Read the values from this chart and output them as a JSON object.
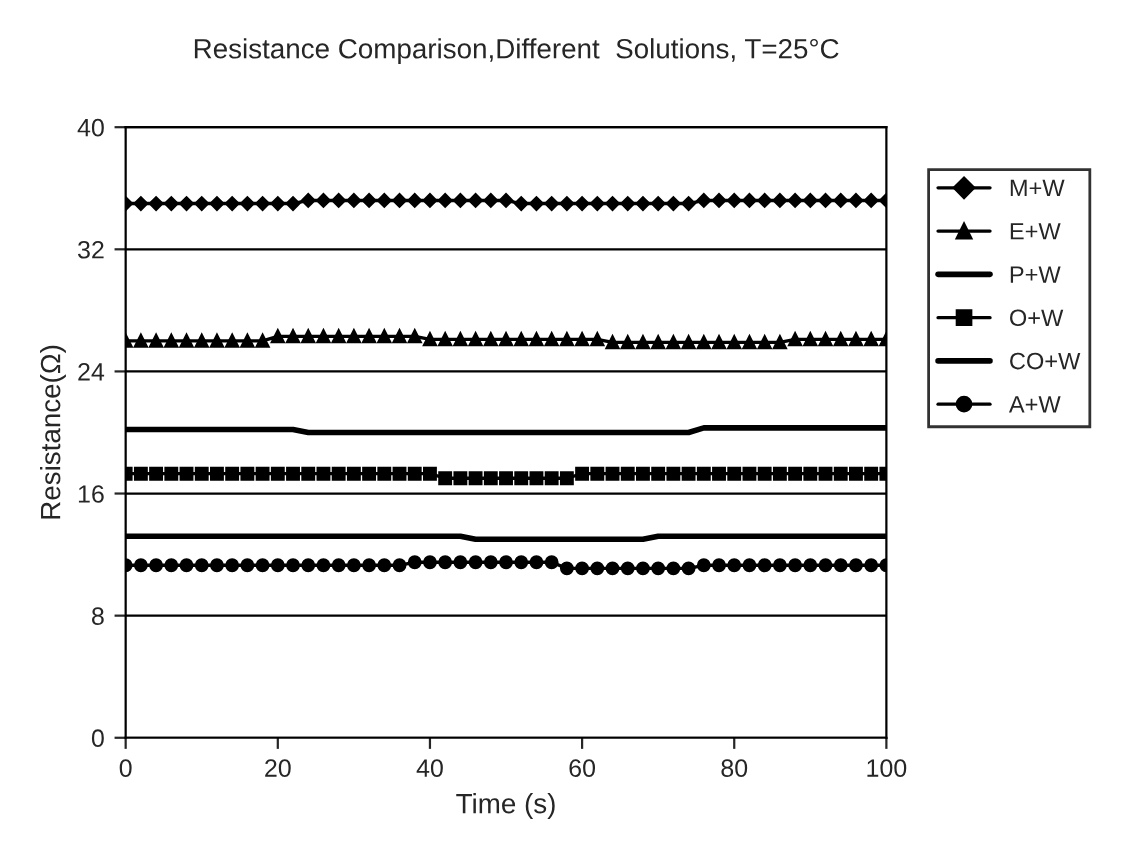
{
  "chart_data": {
    "type": "line",
    "title": "Resistance Comparison,Different  Solutions, T=25°C",
    "xlabel": "Time (s)",
    "ylabel": "Resistance(Ω)",
    "x": [
      0,
      2,
      4,
      6,
      8,
      10,
      12,
      14,
      16,
      18,
      20,
      22,
      24,
      26,
      28,
      30,
      32,
      34,
      36,
      38,
      40,
      42,
      44,
      46,
      48,
      50,
      52,
      54,
      56,
      58,
      60,
      62,
      64,
      66,
      68,
      70,
      72,
      74,
      76,
      78,
      80,
      82,
      84,
      86,
      88,
      90,
      92,
      94,
      96,
      98,
      100
    ],
    "xlim": [
      0,
      100
    ],
    "xticks": [
      0,
      20,
      40,
      60,
      80,
      100
    ],
    "ylim": [
      0,
      40
    ],
    "yticks": [
      0,
      8,
      16,
      24,
      32,
      40
    ],
    "grid": "y",
    "legend": "right",
    "series": [
      {
        "name": "M+W",
        "color": "#000000",
        "marker": "diamond",
        "values": [
          35.0,
          35.0,
          35.0,
          35.0,
          35.0,
          35.0,
          35.0,
          35.0,
          35.0,
          35.0,
          35.0,
          35.0,
          35.2,
          35.2,
          35.2,
          35.2,
          35.2,
          35.2,
          35.2,
          35.2,
          35.2,
          35.2,
          35.2,
          35.2,
          35.2,
          35.2,
          35.0,
          35.0,
          35.0,
          35.0,
          35.0,
          35.0,
          35.0,
          35.0,
          35.0,
          35.0,
          35.0,
          35.0,
          35.2,
          35.2,
          35.2,
          35.2,
          35.2,
          35.2,
          35.2,
          35.2,
          35.2,
          35.2,
          35.2,
          35.2,
          35.2
        ]
      },
      {
        "name": "E+W",
        "color": "#000000",
        "marker": "triangle",
        "values": [
          26.0,
          26.0,
          26.0,
          26.0,
          26.0,
          26.0,
          26.0,
          26.0,
          26.0,
          26.0,
          26.3,
          26.3,
          26.3,
          26.3,
          26.3,
          26.3,
          26.3,
          26.3,
          26.3,
          26.3,
          26.1,
          26.1,
          26.1,
          26.1,
          26.1,
          26.1,
          26.1,
          26.1,
          26.1,
          26.1,
          26.1,
          26.1,
          25.9,
          25.9,
          25.9,
          25.9,
          25.9,
          25.9,
          25.9,
          25.9,
          25.9,
          25.9,
          25.9,
          25.9,
          26.1,
          26.1,
          26.1,
          26.1,
          26.1,
          26.1,
          26.1
        ]
      },
      {
        "name": "P+W",
        "color": "#000000",
        "marker": "none",
        "values": [
          20.2,
          20.2,
          20.2,
          20.2,
          20.2,
          20.2,
          20.2,
          20.2,
          20.2,
          20.2,
          20.2,
          20.2,
          20.0,
          20.0,
          20.0,
          20.0,
          20.0,
          20.0,
          20.0,
          20.0,
          20.0,
          20.0,
          20.0,
          20.0,
          20.0,
          20.0,
          20.0,
          20.0,
          20.0,
          20.0,
          20.0,
          20.0,
          20.0,
          20.0,
          20.0,
          20.0,
          20.0,
          20.0,
          20.3,
          20.3,
          20.3,
          20.3,
          20.3,
          20.3,
          20.3,
          20.3,
          20.3,
          20.3,
          20.3,
          20.3,
          20.3
        ]
      },
      {
        "name": "O+W",
        "color": "#000000",
        "marker": "square",
        "values": [
          17.3,
          17.3,
          17.3,
          17.3,
          17.3,
          17.3,
          17.3,
          17.3,
          17.3,
          17.3,
          17.3,
          17.3,
          17.3,
          17.3,
          17.3,
          17.3,
          17.3,
          17.3,
          17.3,
          17.3,
          17.3,
          17.0,
          17.0,
          17.0,
          17.0,
          17.0,
          17.0,
          17.0,
          17.0,
          17.0,
          17.3,
          17.3,
          17.3,
          17.3,
          17.3,
          17.3,
          17.3,
          17.3,
          17.3,
          17.3,
          17.3,
          17.3,
          17.3,
          17.3,
          17.3,
          17.3,
          17.3,
          17.3,
          17.3,
          17.3,
          17.3
        ]
      },
      {
        "name": "CO+W",
        "color": "#000000",
        "marker": "none",
        "values": [
          13.2,
          13.2,
          13.2,
          13.2,
          13.2,
          13.2,
          13.2,
          13.2,
          13.2,
          13.2,
          13.2,
          13.2,
          13.2,
          13.2,
          13.2,
          13.2,
          13.2,
          13.2,
          13.2,
          13.2,
          13.2,
          13.2,
          13.2,
          13.0,
          13.0,
          13.0,
          13.0,
          13.0,
          13.0,
          13.0,
          13.0,
          13.0,
          13.0,
          13.0,
          13.0,
          13.2,
          13.2,
          13.2,
          13.2,
          13.2,
          13.2,
          13.2,
          13.2,
          13.2,
          13.2,
          13.2,
          13.2,
          13.2,
          13.2,
          13.2,
          13.2
        ]
      },
      {
        "name": "A+W",
        "color": "#000000",
        "marker": "circle",
        "values": [
          11.3,
          11.3,
          11.3,
          11.3,
          11.3,
          11.3,
          11.3,
          11.3,
          11.3,
          11.3,
          11.3,
          11.3,
          11.3,
          11.3,
          11.3,
          11.3,
          11.3,
          11.3,
          11.3,
          11.5,
          11.5,
          11.5,
          11.5,
          11.5,
          11.5,
          11.5,
          11.5,
          11.5,
          11.5,
          11.1,
          11.1,
          11.1,
          11.1,
          11.1,
          11.1,
          11.1,
          11.1,
          11.1,
          11.3,
          11.3,
          11.3,
          11.3,
          11.3,
          11.3,
          11.3,
          11.3,
          11.3,
          11.3,
          11.3,
          11.3,
          11.3
        ]
      }
    ]
  }
}
